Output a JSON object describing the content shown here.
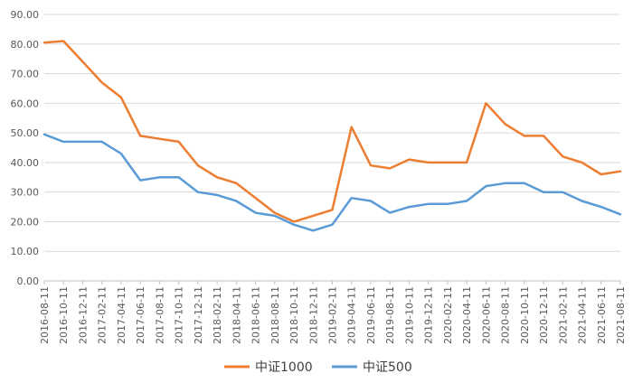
{
  "chart_data": {
    "type": "line",
    "x": [
      "2016-08-11",
      "2016-10-11",
      "2016-12-11",
      "2017-02-11",
      "2017-04-11",
      "2017-06-11",
      "2017-08-11",
      "2017-10-11",
      "2017-12-11",
      "2018-02-11",
      "2018-04-11",
      "2018-06-11",
      "2018-08-11",
      "2018-10-11",
      "2018-12-11",
      "2019-02-11",
      "2019-04-11",
      "2019-06-11",
      "2019-08-11",
      "2019-10-11",
      "2019-12-11",
      "2020-02-11",
      "2020-04-11",
      "2020-06-11",
      "2020-08-11",
      "2020-10-11",
      "2020-12-11",
      "2021-02-11",
      "2021-04-11",
      "2021-06-11",
      "2021-08-11"
    ],
    "ylim": [
      0,
      90
    ],
    "y_ticks": [
      "0.00",
      "10.00",
      "20.00",
      "30.00",
      "40.00",
      "50.00",
      "60.00",
      "70.00",
      "80.00",
      "90.00"
    ],
    "grid": true,
    "legend_position": "bottom",
    "series": [
      {
        "name": "中证1000",
        "color": "#ED7D31",
        "values": [
          80.5,
          81,
          74,
          67,
          62,
          49,
          48,
          47,
          39,
          35,
          33,
          28,
          23,
          20,
          22,
          24,
          52,
          39,
          38,
          41,
          40,
          40,
          40,
          60,
          53,
          49,
          49,
          42,
          40,
          36,
          37
        ]
      },
      {
        "name": "中证500",
        "color": "#5B9BD5",
        "values": [
          49.5,
          47,
          47,
          47,
          43,
          34,
          35,
          35,
          30,
          29,
          27,
          23,
          22,
          19,
          17,
          19,
          28,
          27,
          23,
          25,
          26,
          26,
          27,
          32,
          33,
          33,
          30,
          30,
          27,
          25,
          22.5
        ]
      }
    ]
  }
}
